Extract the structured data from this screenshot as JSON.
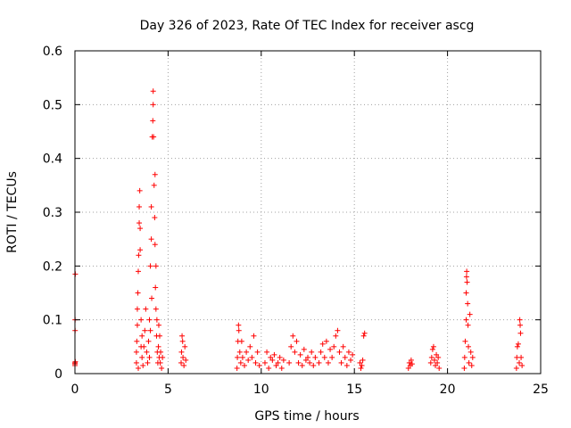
{
  "chart_data": {
    "type": "scatter",
    "title": "Day 326 of 2023, Rate Of TEC Index for receiver ascg",
    "xlabel": "GPS time / hours",
    "ylabel": "ROTI / TECUs",
    "xlim": [
      0,
      25
    ],
    "ylim": [
      0,
      0.6
    ],
    "xticks": [
      0,
      5,
      10,
      15,
      20,
      25
    ],
    "xtick_labels": [
      "0",
      "5",
      "10",
      "15",
      "20",
      "25"
    ],
    "yticks": [
      0,
      0.1,
      0.2,
      0.3,
      0.4,
      0.5,
      0.6
    ],
    "ytick_labels": [
      "0",
      "0.1",
      "0.2",
      "0.3",
      "0.4",
      "0.5",
      "0.6"
    ],
    "grid": true,
    "marker": "plus",
    "color": "#ff0000",
    "series": [
      {
        "points": [
          [
            0.0,
            0.015
          ],
          [
            0.0,
            0.02
          ],
          [
            0.0,
            0.018
          ],
          [
            0.02,
            0.022
          ],
          [
            0.01,
            0.08
          ],
          [
            0.01,
            0.1
          ],
          [
            0.02,
            0.185
          ],
          [
            3.3,
            0.02
          ],
          [
            3.3,
            0.04
          ],
          [
            3.32,
            0.06
          ],
          [
            3.35,
            0.09
          ],
          [
            3.35,
            0.12
          ],
          [
            3.38,
            0.15
          ],
          [
            3.4,
            0.19
          ],
          [
            3.42,
            0.22
          ],
          [
            3.45,
            0.28
          ],
          [
            3.45,
            0.31
          ],
          [
            3.48,
            0.34
          ],
          [
            3.5,
            0.27
          ],
          [
            3.5,
            0.23
          ],
          [
            3.55,
            0.1
          ],
          [
            3.55,
            0.05
          ],
          [
            3.6,
            0.03
          ],
          [
            3.65,
            0.015
          ],
          [
            3.7,
            0.05
          ],
          [
            3.75,
            0.08
          ],
          [
            3.8,
            0.12
          ],
          [
            3.85,
            0.04
          ],
          [
            3.9,
            0.02
          ],
          [
            3.95,
            0.06
          ],
          [
            4.0,
            0.1
          ],
          [
            4.0,
            0.03
          ],
          [
            4.05,
            0.2
          ],
          [
            4.05,
            0.08
          ],
          [
            4.1,
            0.25
          ],
          [
            4.1,
            0.31
          ],
          [
            4.12,
            0.14
          ],
          [
            4.15,
            0.44
          ],
          [
            4.18,
            0.47
          ],
          [
            4.2,
            0.5
          ],
          [
            4.2,
            0.525
          ],
          [
            4.22,
            0.44
          ],
          [
            4.25,
            0.35
          ],
          [
            4.28,
            0.29
          ],
          [
            4.3,
            0.37
          ],
          [
            4.3,
            0.24
          ],
          [
            4.32,
            0.16
          ],
          [
            4.35,
            0.12
          ],
          [
            4.35,
            0.2
          ],
          [
            4.38,
            0.07
          ],
          [
            4.4,
            0.1
          ],
          [
            4.42,
            0.04
          ],
          [
            4.45,
            0.02
          ],
          [
            4.48,
            0.05
          ],
          [
            4.5,
            0.09
          ],
          [
            4.52,
            0.03
          ],
          [
            4.55,
            0.07
          ],
          [
            4.58,
            0.02
          ],
          [
            4.6,
            0.04
          ],
          [
            4.65,
            0.01
          ],
          [
            4.7,
            0.03
          ],
          [
            3.4,
            0.01
          ],
          [
            3.6,
            0.07
          ],
          [
            5.7,
            0.02
          ],
          [
            5.72,
            0.04
          ],
          [
            5.75,
            0.07
          ],
          [
            5.78,
            0.06
          ],
          [
            5.8,
            0.03
          ],
          [
            5.85,
            0.015
          ],
          [
            5.9,
            0.05
          ],
          [
            5.95,
            0.025
          ],
          [
            8.7,
            0.01
          ],
          [
            8.72,
            0.03
          ],
          [
            8.75,
            0.06
          ],
          [
            8.78,
            0.09
          ],
          [
            8.8,
            0.08
          ],
          [
            8.85,
            0.04
          ],
          [
            8.9,
            0.02
          ],
          [
            8.95,
            0.06
          ],
          [
            9.0,
            0.03
          ],
          [
            9.1,
            0.015
          ],
          [
            9.2,
            0.04
          ],
          [
            9.3,
            0.025
          ],
          [
            9.4,
            0.05
          ],
          [
            9.5,
            0.03
          ],
          [
            9.6,
            0.07
          ],
          [
            9.7,
            0.02
          ],
          [
            9.8,
            0.04
          ],
          [
            9.9,
            0.015
          ],
          [
            10.2,
            0.02
          ],
          [
            10.3,
            0.04
          ],
          [
            10.4,
            0.01
          ],
          [
            10.5,
            0.03
          ],
          [
            10.6,
            0.025
          ],
          [
            10.7,
            0.035
          ],
          [
            10.8,
            0.015
          ],
          [
            10.9,
            0.02
          ],
          [
            11.0,
            0.03
          ],
          [
            11.1,
            0.01
          ],
          [
            11.2,
            0.025
          ],
          [
            11.5,
            0.02
          ],
          [
            11.6,
            0.05
          ],
          [
            11.7,
            0.07
          ],
          [
            11.8,
            0.04
          ],
          [
            11.9,
            0.06
          ],
          [
            12.0,
            0.02
          ],
          [
            12.1,
            0.035
          ],
          [
            12.2,
            0.015
          ],
          [
            12.3,
            0.045
          ],
          [
            12.4,
            0.025
          ],
          [
            12.5,
            0.03
          ],
          [
            12.6,
            0.02
          ],
          [
            12.7,
            0.04
          ],
          [
            12.8,
            0.015
          ],
          [
            12.9,
            0.03
          ],
          [
            13.1,
            0.02
          ],
          [
            13.2,
            0.04
          ],
          [
            13.3,
            0.055
          ],
          [
            13.4,
            0.03
          ],
          [
            13.5,
            0.06
          ],
          [
            13.6,
            0.02
          ],
          [
            13.7,
            0.045
          ],
          [
            13.8,
            0.03
          ],
          [
            13.9,
            0.05
          ],
          [
            14.0,
            0.07
          ],
          [
            14.1,
            0.08
          ],
          [
            14.2,
            0.04
          ],
          [
            14.3,
            0.02
          ],
          [
            14.4,
            0.05
          ],
          [
            14.5,
            0.03
          ],
          [
            14.6,
            0.015
          ],
          [
            14.7,
            0.04
          ],
          [
            14.8,
            0.025
          ],
          [
            14.9,
            0.035
          ],
          [
            15.3,
            0.02
          ],
          [
            15.35,
            0.01
          ],
          [
            15.4,
            0.015
          ],
          [
            15.45,
            0.025
          ],
          [
            15.5,
            0.07
          ],
          [
            15.55,
            0.075
          ],
          [
            17.9,
            0.01
          ],
          [
            17.95,
            0.02
          ],
          [
            18.0,
            0.015
          ],
          [
            18.05,
            0.025
          ],
          [
            18.1,
            0.018
          ],
          [
            19.1,
            0.02
          ],
          [
            19.15,
            0.03
          ],
          [
            19.2,
            0.045
          ],
          [
            19.25,
            0.05
          ],
          [
            19.3,
            0.025
          ],
          [
            19.35,
            0.015
          ],
          [
            19.4,
            0.035
          ],
          [
            19.45,
            0.02
          ],
          [
            19.5,
            0.03
          ],
          [
            19.55,
            0.01
          ],
          [
            20.9,
            0.01
          ],
          [
            20.92,
            0.03
          ],
          [
            20.95,
            0.06
          ],
          [
            21.0,
            0.1
          ],
          [
            21.0,
            0.15
          ],
          [
            21.02,
            0.18
          ],
          [
            21.03,
            0.19
          ],
          [
            21.05,
            0.17
          ],
          [
            21.08,
            0.13
          ],
          [
            21.1,
            0.09
          ],
          [
            21.12,
            0.05
          ],
          [
            21.15,
            0.02
          ],
          [
            21.2,
            0.11
          ],
          [
            21.25,
            0.04
          ],
          [
            21.3,
            0.015
          ],
          [
            21.35,
            0.03
          ],
          [
            23.7,
            0.01
          ],
          [
            23.72,
            0.03
          ],
          [
            23.75,
            0.05
          ],
          [
            23.8,
            0.055
          ],
          [
            23.85,
            0.02
          ],
          [
            23.88,
            0.1
          ],
          [
            23.9,
            0.09
          ],
          [
            23.92,
            0.075
          ],
          [
            23.95,
            0.03
          ],
          [
            24.0,
            0.015
          ]
        ]
      }
    ]
  }
}
